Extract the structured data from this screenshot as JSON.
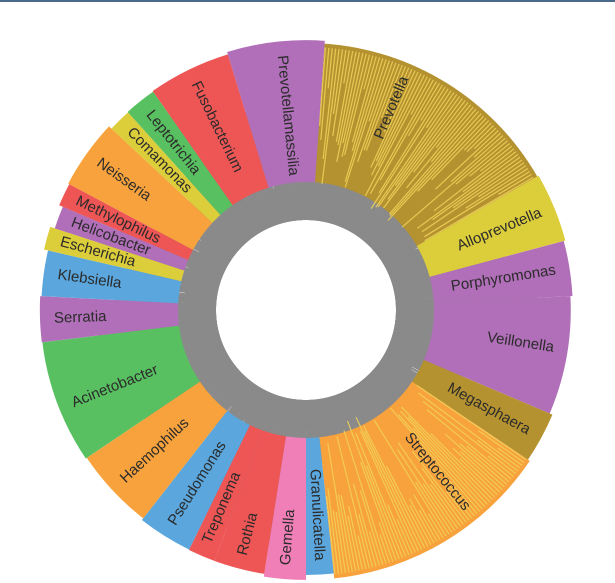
{
  "chart_data": {
    "type": "radial-bar",
    "title": "",
    "inner_fill": "#ffffff",
    "bar_outline_color": "#8a8a8a",
    "stripe_color": "#f2d35a",
    "genera": [
      {
        "name": "Prevotella",
        "start": 4,
        "end": 60,
        "color": "#b59230"
      },
      {
        "name": "Alloprevotella",
        "start": 60,
        "end": 75,
        "color": "#dccd3b"
      },
      {
        "name": "Porphyromonas",
        "start": 75,
        "end": 87,
        "color": "#b06fb8"
      },
      {
        "name": "Veillonella",
        "start": 87,
        "end": 113,
        "color": "#b06fb8"
      },
      {
        "name": "Megasphaera",
        "start": 113,
        "end": 124,
        "color": "#b59230"
      },
      {
        "name": "Streptococcus",
        "start": 124,
        "end": 174,
        "color": "#f7a23c"
      },
      {
        "name": "Granulicatella",
        "start": 174,
        "end": 180,
        "color": "#5aa6dd"
      },
      {
        "name": "Gemella",
        "start": 180,
        "end": 189,
        "color": "#f07fb8"
      },
      {
        "name": "Rothia",
        "start": 189,
        "end": 200,
        "color": "#ee5555"
      },
      {
        "name": "Treponema",
        "start": 200,
        "end": 206,
        "color": "#ee5555"
      },
      {
        "name": "Pseudomonas",
        "start": 206,
        "end": 218,
        "color": "#5aa6dd"
      },
      {
        "name": "Haemophilus",
        "start": 218,
        "end": 236,
        "color": "#f7a23c"
      },
      {
        "name": "Acinetobacter",
        "start": 236,
        "end": 263,
        "color": "#58c060"
      },
      {
        "name": "Serratia",
        "start": 263,
        "end": 273,
        "color": "#b06fb8"
      },
      {
        "name": "Klebsiella",
        "start": 273,
        "end": 283,
        "color": "#5aa6dd"
      },
      {
        "name": "Escherichia",
        "start": 283,
        "end": 288,
        "color": "#dccd3b"
      },
      {
        "name": "Helicobacter",
        "start": 288,
        "end": 293,
        "color": "#b06fb8"
      },
      {
        "name": "Methylophilus",
        "start": 293,
        "end": 298,
        "color": "#ee5555"
      },
      {
        "name": "Neisseria",
        "start": 298,
        "end": 313,
        "color": "#f7a23c"
      },
      {
        "name": "Comamonas",
        "start": 313,
        "end": 318,
        "color": "#dccd3b"
      },
      {
        "name": "Leptotrichia",
        "start": 318,
        "end": 325,
        "color": "#58c060"
      },
      {
        "name": "Fusobacterium",
        "start": 325,
        "end": 343,
        "color": "#ee5555"
      },
      {
        "name": "Prevotellamassilia",
        "start": 343,
        "end": 364,
        "color": "#b06fb8"
      }
    ]
  }
}
